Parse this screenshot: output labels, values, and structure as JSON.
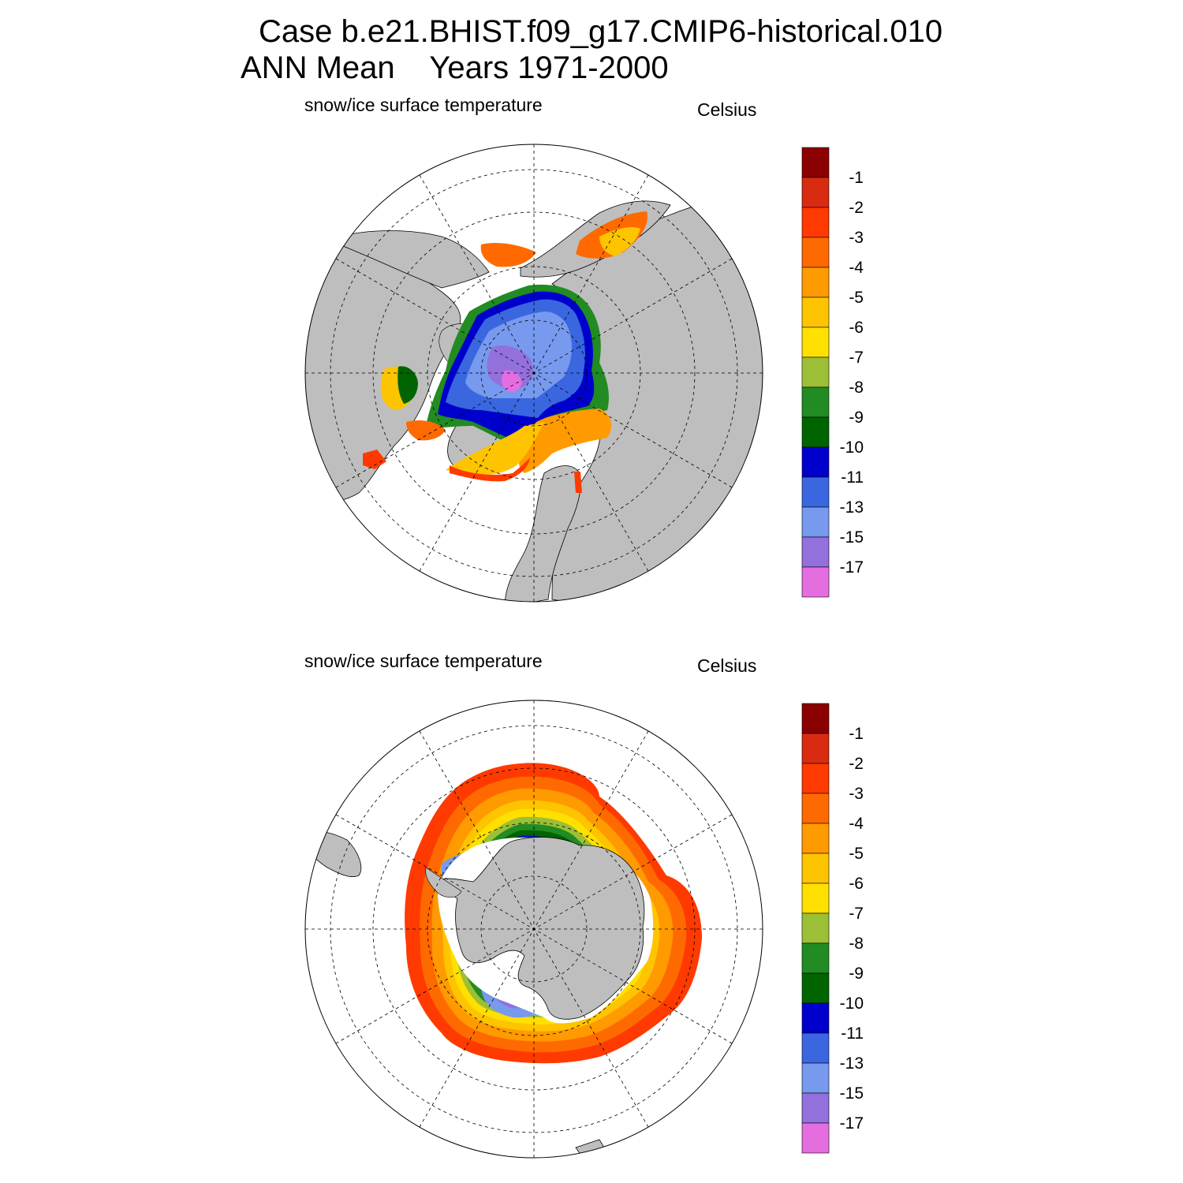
{
  "title": {
    "line1": "Case b.e21.BHIST.f09_g17.CMIP6-historical.010",
    "line2": "ANN Mean    Years 1971-2000"
  },
  "panels": [
    {
      "name": "north-polar-map",
      "variable_label": "snow/ice surface temperature",
      "units": "Celsius",
      "hemisphere": "north"
    },
    {
      "name": "south-polar-map",
      "variable_label": "snow/ice surface temperature",
      "units": "Celsius",
      "hemisphere": "south"
    }
  ],
  "colorbar": {
    "labels": [
      "-1",
      "-2",
      "-3",
      "-4",
      "-5",
      "-6",
      "-7",
      "-8",
      "-9",
      "-10",
      "-11",
      "-13",
      "-15",
      "-17"
    ],
    "colors": [
      "#8b0000",
      "#d92b10",
      "#ff3a00",
      "#ff6a00",
      "#ff9a00",
      "#ffc400",
      "#ffe000",
      "#9bbf35",
      "#228b22",
      "#006400",
      "#0000cd",
      "#3a66e0",
      "#7799ee",
      "#9370db",
      "#e46ee0"
    ]
  },
  "map_colors": {
    "land": "#bebebe",
    "ocean": "#ffffff"
  }
}
